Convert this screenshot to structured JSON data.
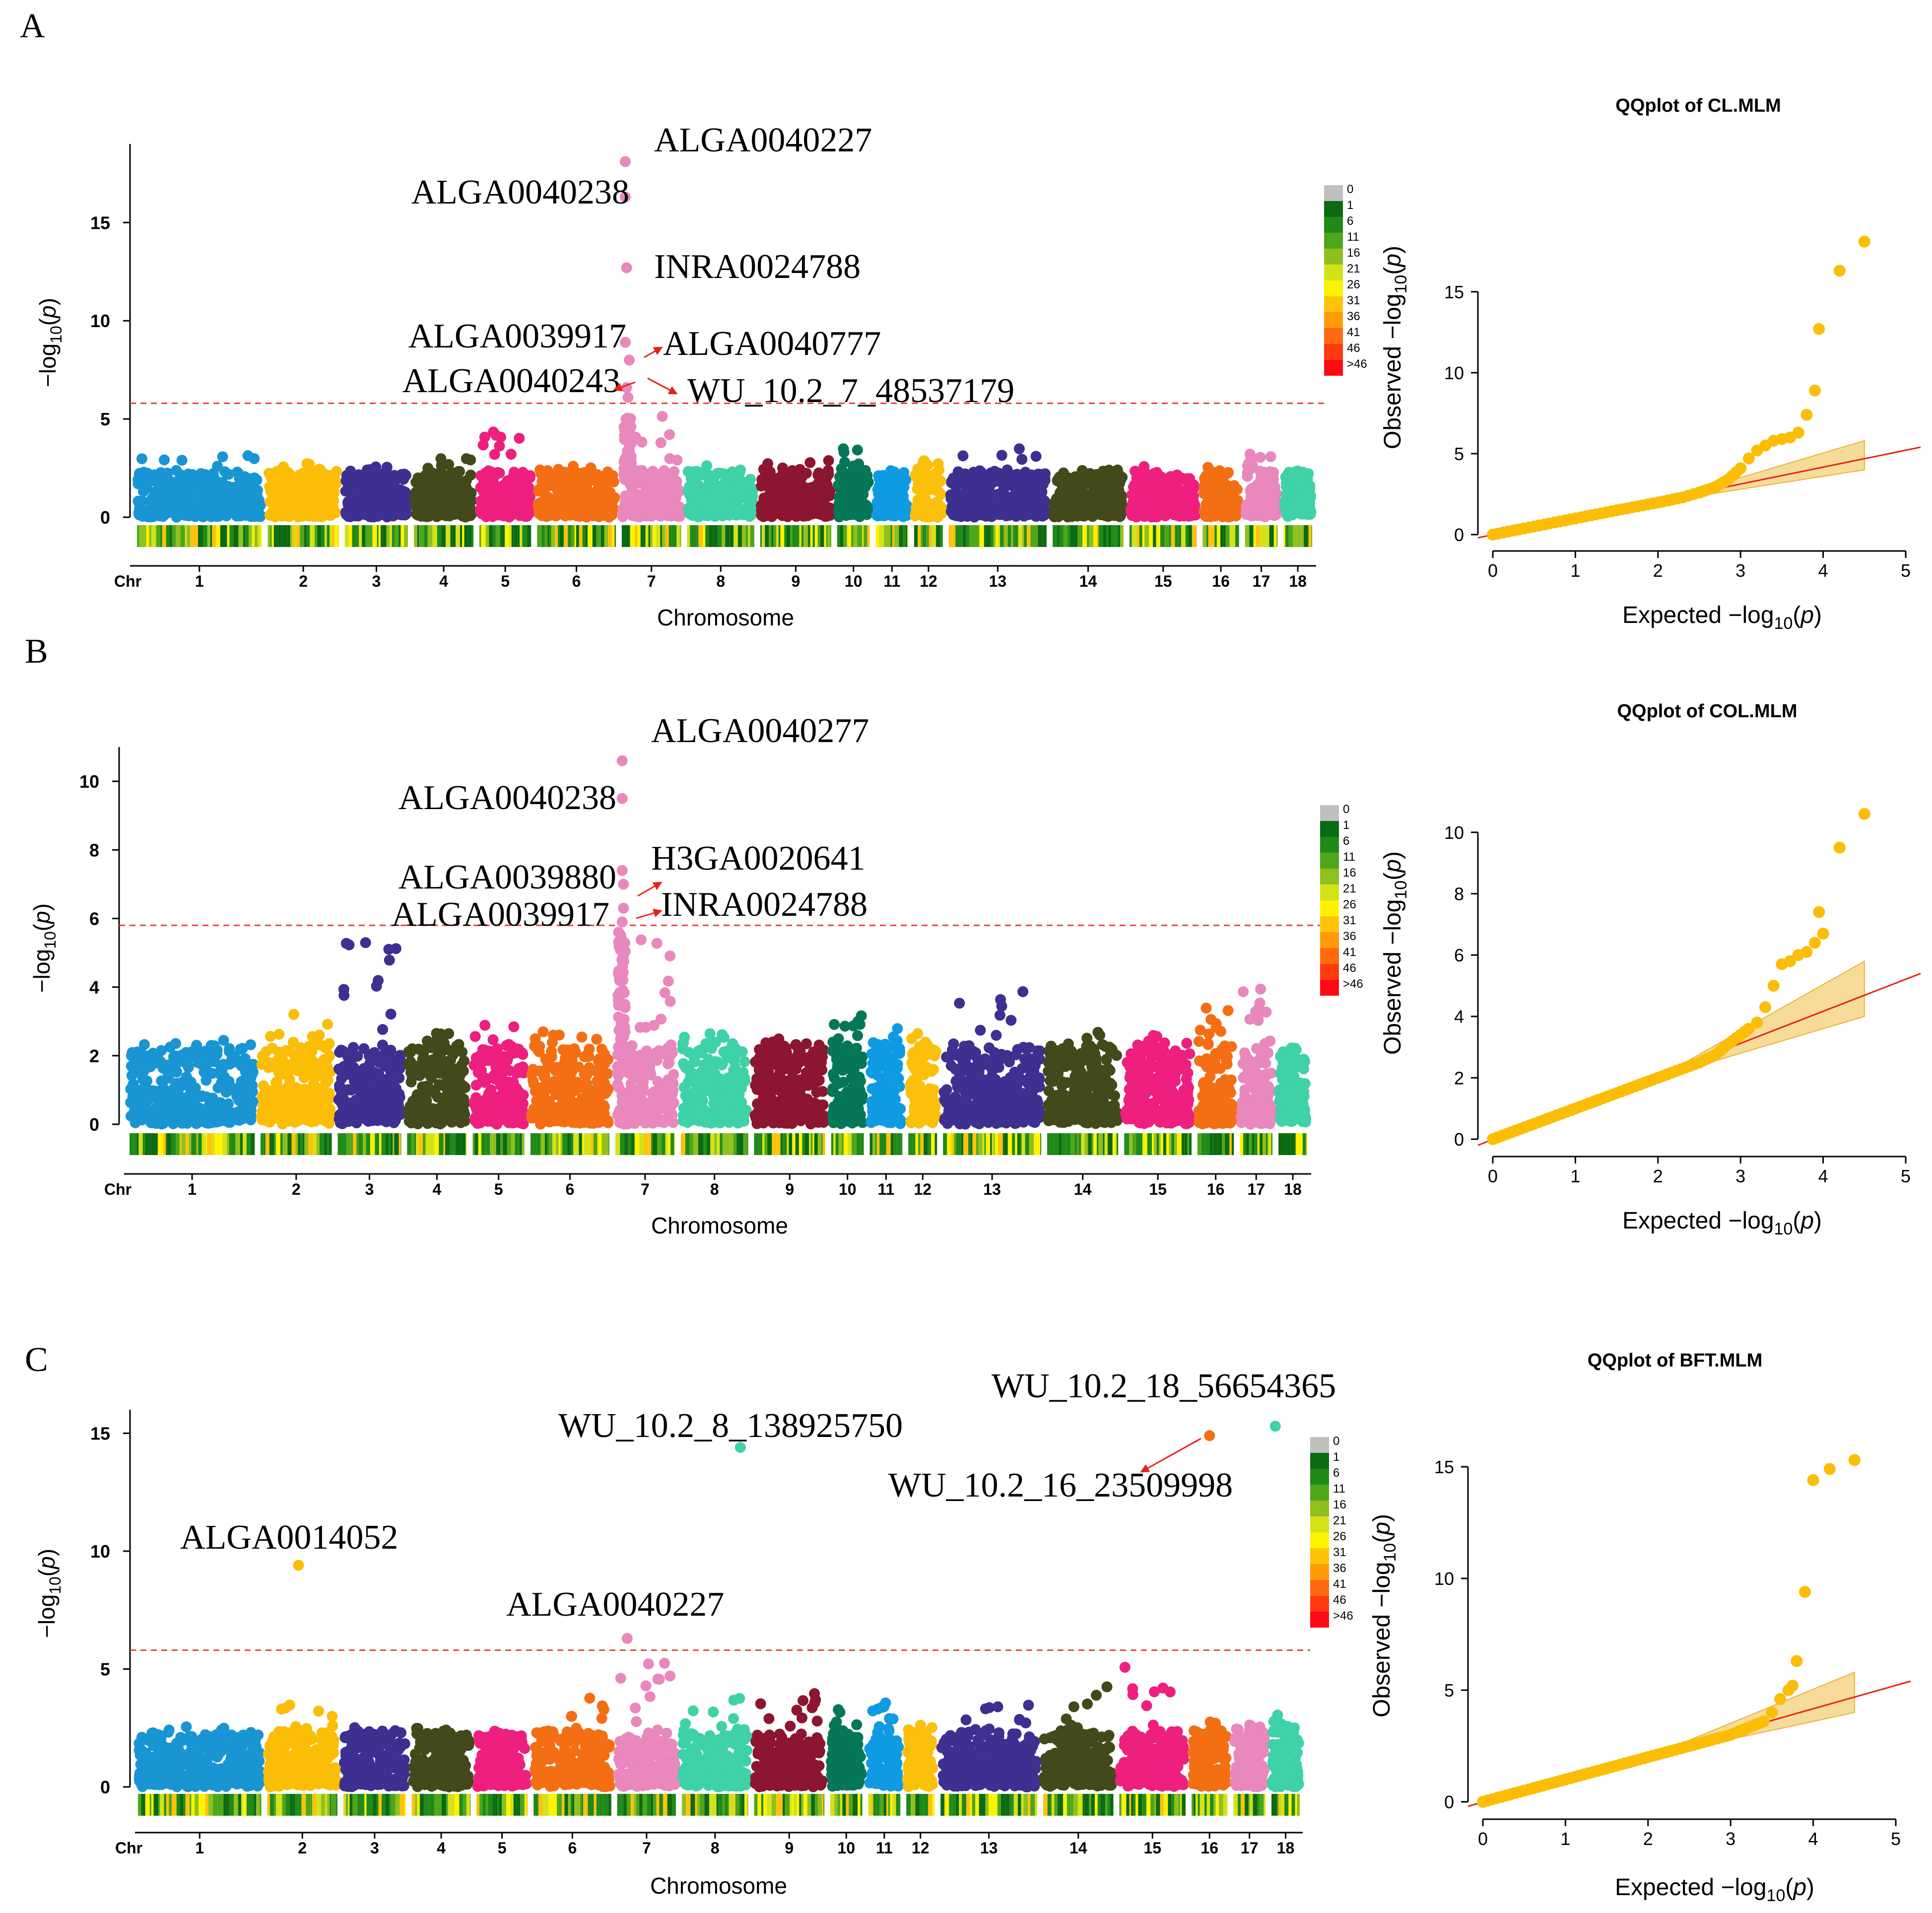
{
  "figure": {
    "chromosomes": [
      "1",
      "2",
      "3",
      "4",
      "5",
      "6",
      "7",
      "8",
      "9",
      "10",
      "11",
      "12",
      "13",
      "14",
      "15",
      "16",
      "17",
      "18"
    ],
    "chr_label": "Chr",
    "colors": [
      "#1a95d4",
      "#fbbd06",
      "#3d3090",
      "#44491c",
      "#ee1f7e",
      "#f46e14",
      "#e888bd",
      "#3fd1a7",
      "#8c1530",
      "#057758",
      "#0f9be2",
      "#fbc00c",
      "#3d3090",
      "#44491c",
      "#ee1f7e",
      "#f46e14",
      "#e888bd",
      "#3fd1a7"
    ],
    "density_legend": [
      "0",
      "1",
      "6",
      "11",
      "16",
      "21",
      "26",
      "31",
      "36",
      "41",
      "46",
      ">46"
    ],
    "density_colors": [
      "#c0c0c0",
      "#0b6a12",
      "#1f8a18",
      "#4ea61a",
      "#8fc01d",
      "#d4e218",
      "#fff200",
      "#ffc20a",
      "#ff9a08",
      "#ff6a0e",
      "#ff3a10",
      "#ff0a14"
    ]
  },
  "chart_data": [
    {
      "type": "scatter",
      "panel": "A",
      "subtype": "manhattan",
      "trait": "CL",
      "xlabel": "Chromosome",
      "ylabel": "-log10(p)",
      "ylim": [
        0,
        19
      ],
      "yticks": [
        0,
        5,
        10,
        15
      ],
      "threshold": 5.8,
      "chr_widths": [
        1.7,
        1.0,
        0.9,
        0.85,
        0.75,
        1.1,
        0.85,
        0.95,
        1.0,
        0.5,
        0.5,
        0.45,
        1.35,
        1.0,
        0.95,
        0.55,
        0.5,
        0.45
      ],
      "max_bg": [
        3.2,
        2.9,
        2.6,
        3.0,
        4.4,
        2.6,
        5.2,
        2.7,
        2.9,
        3.6,
        2.3,
        3.0,
        3.5,
        2.6,
        2.6,
        2.6,
        3.4,
        2.3
      ],
      "peaks": [
        {
          "chr": "7",
          "pos": 0.1,
          "y": 18.1,
          "label": "ALGA0040227"
        },
        {
          "chr": "7",
          "pos": 0.1,
          "y": 16.3,
          "label": "ALGA0040238"
        },
        {
          "chr": "7",
          "pos": 0.12,
          "y": 12.7,
          "label": "INRA0024788"
        },
        {
          "chr": "7",
          "pos": 0.1,
          "y": 8.9,
          "label": "ALGA0039917"
        },
        {
          "chr": "7",
          "pos": 0.16,
          "y": 8.0,
          "label": "ALGA0040777"
        },
        {
          "chr": "7",
          "pos": 0.12,
          "y": 6.6,
          "label": "ALGA0040243"
        },
        {
          "chr": "7",
          "pos": 0.14,
          "y": 6.1,
          "label": "WU_10.2_7_48537179"
        }
      ]
    },
    {
      "type": "scatter",
      "panel": "A",
      "subtype": "qq",
      "title": "QQplot of CL.MLM",
      "xlabel": "Expected  -log10(p)",
      "ylabel": "Observed  -log10(p)",
      "xlim": [
        0,
        5
      ],
      "ylim": [
        0,
        18
      ],
      "xticks": [
        0,
        1,
        2,
        3,
        4,
        5
      ],
      "yticks": [
        0,
        5,
        10,
        15
      ],
      "points": [
        [
          0,
          0
        ],
        [
          0.5,
          0.5
        ],
        [
          1,
          1
        ],
        [
          1.5,
          1.5
        ],
        [
          2,
          1.98
        ],
        [
          2.3,
          2.3
        ],
        [
          2.5,
          2.6
        ],
        [
          2.7,
          2.95
        ],
        [
          2.85,
          3.4
        ],
        [
          3.0,
          4.1
        ],
        [
          3.1,
          4.7
        ],
        [
          3.2,
          5.2
        ],
        [
          3.3,
          5.5
        ],
        [
          3.4,
          5.8
        ],
        [
          3.5,
          5.9
        ],
        [
          3.6,
          6.0
        ],
        [
          3.7,
          6.3
        ],
        [
          3.8,
          7.4
        ],
        [
          3.9,
          8.9
        ],
        [
          3.95,
          12.7
        ],
        [
          4.2,
          16.3
        ],
        [
          4.5,
          18.1
        ]
      ],
      "band_upper_at_max": 5.8,
      "band_lower_at_max": 4.0
    },
    {
      "type": "scatter",
      "panel": "B",
      "subtype": "manhattan",
      "trait": "COL",
      "xlabel": "Chromosome",
      "ylabel": "-log10(p)",
      "ylim": [
        0,
        11
      ],
      "yticks": [
        0,
        2,
        4,
        6,
        8,
        10
      ],
      "threshold": 5.8,
      "chr_widths": [
        1.7,
        1.0,
        0.9,
        0.85,
        0.75,
        1.1,
        0.85,
        0.95,
        1.0,
        0.5,
        0.5,
        0.45,
        1.35,
        1.0,
        0.95,
        0.55,
        0.5,
        0.45
      ],
      "max_bg": [
        2.3,
        3.5,
        5.3,
        2.8,
        3.0,
        2.7,
        5.6,
        2.7,
        2.7,
        3.2,
        2.8,
        2.7,
        4.0,
        2.7,
        2.6,
        3.4,
        4.0,
        2.0
      ],
      "peaks": [
        {
          "chr": "7",
          "pos": 0.15,
          "y": 10.6,
          "label": "ALGA0040277"
        },
        {
          "chr": "7",
          "pos": 0.15,
          "y": 9.5,
          "label": "ALGA0040238"
        },
        {
          "chr": "7",
          "pos": 0.15,
          "y": 7.4,
          "label": "ALGA0039880"
        },
        {
          "chr": "7",
          "pos": 0.17,
          "y": 7.0,
          "label": "H3GA0020641"
        },
        {
          "chr": "7",
          "pos": 0.17,
          "y": 6.3,
          "label": "INRA0024788"
        },
        {
          "chr": "7",
          "pos": 0.15,
          "y": 5.9,
          "label": "ALGA0039917"
        }
      ]
    },
    {
      "type": "scatter",
      "panel": "B",
      "subtype": "qq",
      "title": "QQplot of COL.MLM",
      "xlabel": "Expected  -log10(p)",
      "ylabel": "Observed  -log10(p)",
      "xlim": [
        0,
        5
      ],
      "ylim": [
        0,
        11
      ],
      "xticks": [
        0,
        1,
        2,
        3,
        4,
        5
      ],
      "yticks": [
        0,
        2,
        4,
        6,
        8,
        10
      ],
      "points": [
        [
          0,
          0
        ],
        [
          0.5,
          0.5
        ],
        [
          1,
          1
        ],
        [
          1.5,
          1.5
        ],
        [
          2,
          2
        ],
        [
          2.5,
          2.5
        ],
        [
          2.7,
          2.75
        ],
        [
          2.85,
          3.1
        ],
        [
          3.0,
          3.4
        ],
        [
          3.1,
          3.6
        ],
        [
          3.2,
          3.8
        ],
        [
          3.3,
          4.3
        ],
        [
          3.4,
          5.0
        ],
        [
          3.5,
          5.7
        ],
        [
          3.6,
          5.8
        ],
        [
          3.7,
          6.0
        ],
        [
          3.8,
          6.1
        ],
        [
          3.9,
          6.4
        ],
        [
          4.0,
          6.7
        ],
        [
          3.95,
          7.4
        ],
        [
          4.2,
          9.5
        ],
        [
          4.5,
          10.6
        ]
      ],
      "band_upper_at_max": 5.8,
      "band_lower_at_max": 4.0
    },
    {
      "type": "scatter",
      "panel": "C",
      "subtype": "manhattan",
      "trait": "BFT",
      "xlabel": "Chromosome",
      "ylabel": "-log10(p)",
      "ylim": [
        0,
        16
      ],
      "yticks": [
        0,
        5,
        10,
        15
      ],
      "threshold": 5.8,
      "chr_widths": [
        1.7,
        1.0,
        0.9,
        0.85,
        0.75,
        1.1,
        0.85,
        0.95,
        1.0,
        0.5,
        0.5,
        0.45,
        1.35,
        1.0,
        0.95,
        0.55,
        0.5,
        0.45
      ],
      "max_bg": [
        2.6,
        3.8,
        2.9,
        2.9,
        2.2,
        3.9,
        5.3,
        3.8,
        4.0,
        3.4,
        3.6,
        2.7,
        3.5,
        4.8,
        5.1,
        2.9,
        2.7,
        3.2
      ],
      "peaks": [
        {
          "chr": "2",
          "pos": 0.45,
          "y": 9.4,
          "label": "ALGA0014052"
        },
        {
          "chr": "7",
          "pos": 0.2,
          "y": 6.3,
          "label": "ALGA0040227"
        },
        {
          "chr": "8",
          "pos": 0.85,
          "y": 14.4,
          "label": "WU_10.2_8_138925750"
        },
        {
          "chr": "16",
          "pos": 0.5,
          "y": 14.9,
          "label": "WU_10.2_16_23509998"
        },
        {
          "chr": "18",
          "pos": 0.2,
          "y": 15.3,
          "label": "WU_10.2_18_56654365"
        }
      ]
    },
    {
      "type": "scatter",
      "panel": "C",
      "subtype": "qq",
      "title": "QQplot of BFT.MLM",
      "xlabel": "Expected  -log10(p)",
      "ylabel": "Observed  -log10(p)",
      "xlim": [
        0,
        5
      ],
      "ylim": [
        0,
        16
      ],
      "xticks": [
        0,
        1,
        2,
        3,
        4,
        5
      ],
      "yticks": [
        0,
        5,
        10,
        15
      ],
      "points": [
        [
          0,
          0
        ],
        [
          0.5,
          0.5
        ],
        [
          1,
          1
        ],
        [
          1.5,
          1.5
        ],
        [
          2,
          2
        ],
        [
          2.5,
          2.5
        ],
        [
          3,
          3
        ],
        [
          3.2,
          3.3
        ],
        [
          3.4,
          3.6
        ],
        [
          3.5,
          4.0
        ],
        [
          3.6,
          4.6
        ],
        [
          3.7,
          5.0
        ],
        [
          3.75,
          5.2
        ],
        [
          3.8,
          6.3
        ],
        [
          3.9,
          9.4
        ],
        [
          4.0,
          14.4
        ],
        [
          4.2,
          14.9
        ],
        [
          4.5,
          15.3
        ]
      ],
      "band_upper_at_max": 5.8,
      "band_lower_at_max": 4.0
    }
  ]
}
